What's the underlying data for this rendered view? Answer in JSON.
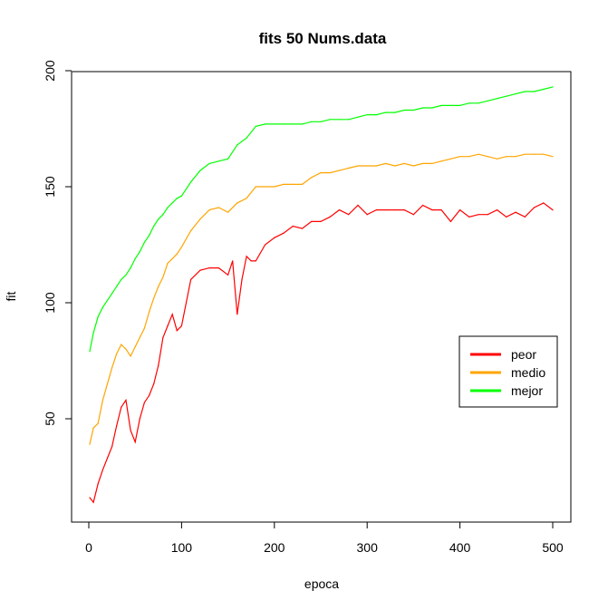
{
  "chart_data": {
    "type": "line",
    "title": "fits 50 Nums.data",
    "xlabel": "epoca",
    "ylabel": "fit",
    "xlim": [
      0,
      500
    ],
    "ylim": [
      10,
      200
    ],
    "x_ticks": [
      "0",
      "100",
      "200",
      "300",
      "400",
      "500"
    ],
    "y_ticks": [
      "50",
      "100",
      "150",
      "200"
    ],
    "grid": false,
    "legend_position": "right",
    "series": [
      {
        "name": "peor",
        "color": "#ff0000",
        "x": [
          1,
          5,
          10,
          15,
          20,
          25,
          30,
          35,
          40,
          45,
          50,
          55,
          60,
          65,
          70,
          75,
          80,
          85,
          90,
          95,
          100,
          110,
          120,
          130,
          140,
          150,
          155,
          160,
          165,
          170,
          175,
          180,
          190,
          200,
          210,
          220,
          230,
          240,
          250,
          260,
          270,
          280,
          290,
          300,
          310,
          320,
          330,
          340,
          350,
          360,
          370,
          380,
          390,
          400,
          410,
          420,
          430,
          440,
          450,
          460,
          470,
          480,
          490,
          500
        ],
        "values": [
          16,
          14,
          22,
          28,
          33,
          38,
          47,
          55,
          58,
          45,
          40,
          50,
          57,
          60,
          65,
          73,
          85,
          90,
          95,
          88,
          90,
          110,
          114,
          115,
          115,
          112,
          118,
          95,
          110,
          120,
          118,
          118,
          125,
          128,
          130,
          133,
          132,
          135,
          135,
          137,
          140,
          138,
          142,
          138,
          140,
          140,
          140,
          140,
          138,
          142,
          140,
          140,
          135,
          140,
          137,
          138,
          138,
          140,
          137,
          139,
          137,
          141,
          143,
          140
        ]
      },
      {
        "name": "medio",
        "color": "#ffa500",
        "x": [
          1,
          5,
          10,
          15,
          20,
          25,
          30,
          35,
          40,
          45,
          50,
          55,
          60,
          65,
          70,
          75,
          80,
          85,
          90,
          95,
          100,
          110,
          120,
          130,
          140,
          150,
          160,
          170,
          180,
          190,
          200,
          210,
          220,
          230,
          240,
          250,
          260,
          270,
          280,
          290,
          300,
          310,
          320,
          330,
          340,
          350,
          360,
          370,
          380,
          390,
          400,
          410,
          420,
          430,
          440,
          450,
          460,
          470,
          480,
          490,
          500
        ],
        "values": [
          39,
          46,
          48,
          58,
          65,
          72,
          78,
          82,
          80,
          77,
          81,
          85,
          89,
          96,
          102,
          107,
          111,
          117,
          119,
          121,
          124,
          131,
          136,
          140,
          141,
          139,
          143,
          145,
          150,
          150,
          150,
          151,
          151,
          151,
          154,
          156,
          156,
          157,
          158,
          159,
          159,
          159,
          160,
          159,
          160,
          159,
          160,
          160,
          161,
          162,
          163,
          163,
          164,
          163,
          162,
          163,
          163,
          164,
          164,
          164,
          163
        ]
      },
      {
        "name": "mejor",
        "color": "#00ff00",
        "x": [
          1,
          5,
          10,
          15,
          20,
          25,
          30,
          35,
          40,
          45,
          50,
          55,
          60,
          65,
          70,
          75,
          80,
          85,
          90,
          95,
          100,
          110,
          120,
          130,
          140,
          150,
          160,
          170,
          180,
          190,
          200,
          210,
          220,
          230,
          240,
          250,
          260,
          270,
          280,
          290,
          300,
          310,
          320,
          330,
          340,
          350,
          360,
          370,
          380,
          390,
          400,
          410,
          420,
          430,
          440,
          450,
          460,
          470,
          480,
          490,
          500
        ],
        "values": [
          79,
          87,
          94,
          98,
          101,
          104,
          107,
          110,
          112,
          115,
          119,
          122,
          126,
          129,
          133,
          136,
          138,
          141,
          143,
          145,
          146,
          152,
          157,
          160,
          161,
          162,
          168,
          171,
          176,
          177,
          177,
          177,
          177,
          177,
          178,
          178,
          179,
          179,
          179,
          180,
          181,
          181,
          182,
          182,
          183,
          183,
          184,
          184,
          185,
          185,
          185,
          186,
          186,
          187,
          188,
          189,
          190,
          191,
          191,
          192,
          193
        ]
      }
    ]
  }
}
